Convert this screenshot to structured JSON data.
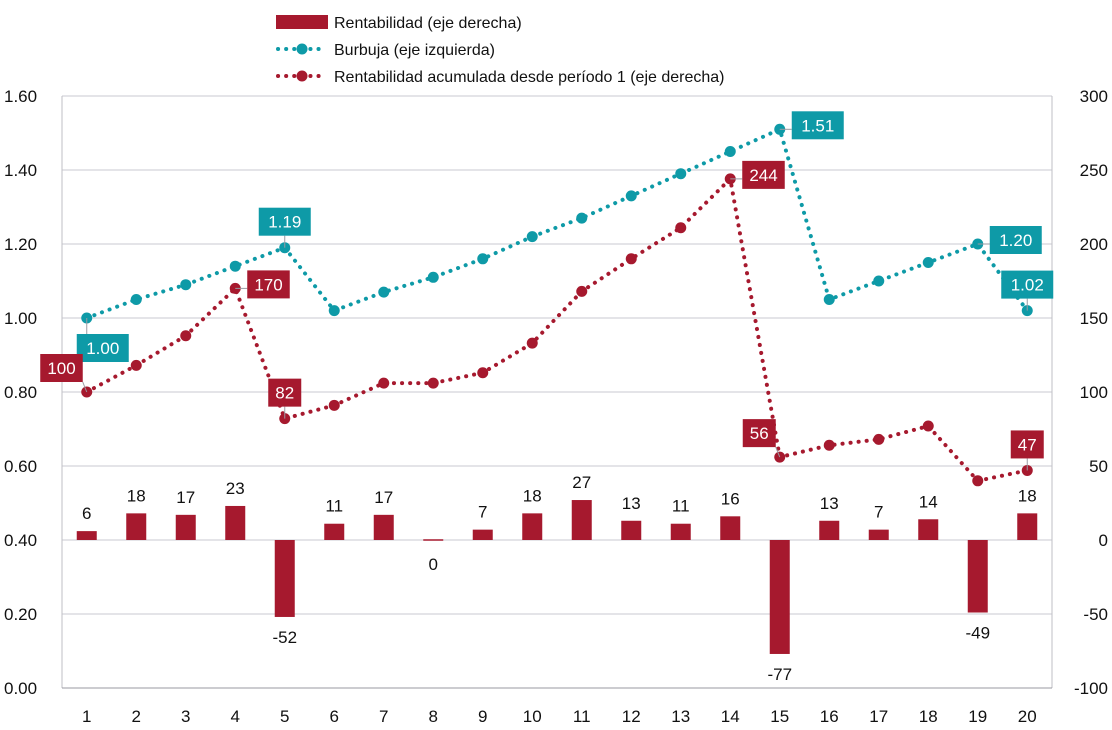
{
  "chart_data": {
    "type": "bar+line",
    "categories": [
      "1",
      "2",
      "3",
      "4",
      "5",
      "6",
      "7",
      "8",
      "9",
      "10",
      "11",
      "12",
      "13",
      "14",
      "15",
      "16",
      "17",
      "18",
      "19",
      "20"
    ],
    "left_axis": {
      "min": 0,
      "max": 1.6,
      "step": 0.2,
      "tick_labels": [
        "0.00",
        "0.20",
        "0.40",
        "0.60",
        "0.80",
        "1.00",
        "1.20",
        "1.40",
        "1.60"
      ]
    },
    "right_axis": {
      "min": -100,
      "max": 300,
      "step": 50,
      "tick_labels": [
        "-100",
        "-50",
        "0",
        "50",
        "100",
        "150",
        "200",
        "250",
        "300"
      ]
    },
    "grid": true,
    "legend_position": "top-center",
    "series": [
      {
        "name": "Rentabilidad (eje derecha)",
        "kind": "bar",
        "axis": "right",
        "color": "#A6192E",
        "values": [
          6,
          18,
          17,
          23,
          -52,
          11,
          17,
          0,
          7,
          18,
          27,
          13,
          11,
          16,
          -77,
          13,
          7,
          14,
          -49,
          18
        ],
        "labels": [
          "6",
          "18",
          "17",
          "23",
          "-52",
          "11",
          "17",
          "0",
          "7",
          "18",
          "27",
          "13",
          "11",
          "16",
          "-77",
          "13",
          "7",
          "14",
          "-49",
          "18"
        ]
      },
      {
        "name": "Burbuja (eje izquierda)",
        "kind": "line-dotted",
        "axis": "left",
        "color": "#0E9AA7",
        "values": [
          1.0,
          1.05,
          1.09,
          1.14,
          1.19,
          1.02,
          1.07,
          1.11,
          1.16,
          1.22,
          1.27,
          1.33,
          1.39,
          1.45,
          1.51,
          1.05,
          1.1,
          1.15,
          1.2,
          1.02
        ],
        "callouts": [
          {
            "index": 0,
            "text": "1.00",
            "position": "below-right"
          },
          {
            "index": 4,
            "text": "1.19",
            "position": "above"
          },
          {
            "index": 14,
            "text": "1.51",
            "position": "right"
          },
          {
            "index": 18,
            "text": "1.20",
            "position": "right"
          },
          {
            "index": 19,
            "text": "1.02",
            "position": "above"
          }
        ]
      },
      {
        "name": "Rentabilidad acumulada desde período 1 (eje derecha)",
        "kind": "line-dotted",
        "axis": "right",
        "color": "#A6192E",
        "values": [
          100,
          118,
          138,
          170,
          82,
          91,
          106,
          106,
          113,
          133,
          168,
          190,
          211,
          244,
          56,
          64,
          68,
          77,
          40,
          47
        ],
        "callouts": [
          {
            "index": 0,
            "text": "100",
            "position": "above-left"
          },
          {
            "index": 3,
            "text": "170",
            "position": "right"
          },
          {
            "index": 4,
            "text": "82",
            "position": "above"
          },
          {
            "index": 13,
            "text": "244",
            "position": "right"
          },
          {
            "index": 14,
            "text": "56",
            "position": "above-left"
          },
          {
            "index": 19,
            "text": "47",
            "position": "above"
          }
        ]
      }
    ]
  }
}
